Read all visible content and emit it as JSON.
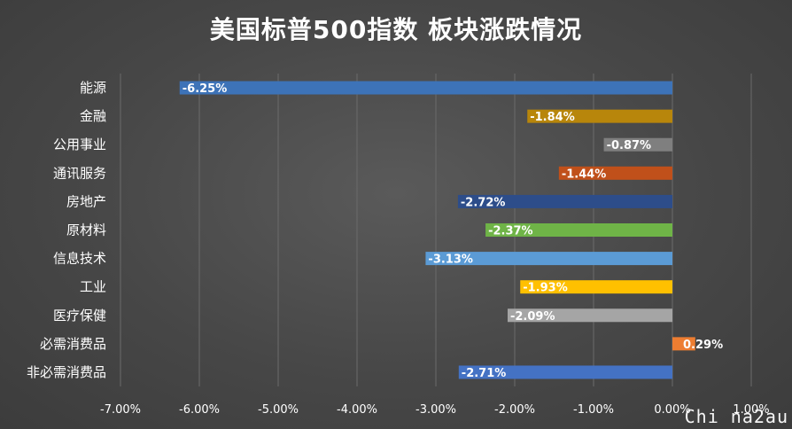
{
  "chart_data": {
    "type": "bar",
    "orientation": "horizontal",
    "title": "美国标普500指数 板块涨跌情况",
    "categories": [
      "能源",
      "金融",
      "公用事业",
      "通讯服务",
      "房地产",
      "原材料",
      "信息技术",
      "工业",
      "医疗保健",
      "必需消费品",
      "非必需消费品"
    ],
    "values": [
      -6.25,
      -1.84,
      -0.87,
      -1.44,
      -2.72,
      -2.37,
      -3.13,
      -1.93,
      -2.09,
      0.29,
      -2.71
    ],
    "data_labels": [
      "-6.25%",
      "-1.84%",
      "-0.87%",
      "-1.44%",
      "-2.72%",
      "-2.37%",
      "-3.13%",
      "-1.93%",
      "-2.09%",
      "0.29%",
      "-2.71%"
    ],
    "bar_colors": [
      "#3d73b8",
      "#b8860b",
      "#7f7f7f",
      "#c0501a",
      "#2d4d8a",
      "#6fb447",
      "#5b9bd5",
      "#ffc000",
      "#a5a5a5",
      "#ed7d31",
      "#4472c4"
    ],
    "xlim": [
      -7,
      1
    ],
    "x_ticks": [
      -7,
      -6,
      -5,
      -4,
      -3,
      -2,
      -1,
      0,
      1
    ],
    "x_tick_labels": [
      "-7.00%",
      "-6.00%",
      "-5.00%",
      "-4.00%",
      "-3.00%",
      "-2.00%",
      "-1.00%",
      "0.00%",
      "1.00%"
    ],
    "grid": true,
    "legend": "none"
  },
  "watermark": "Chi na2au"
}
